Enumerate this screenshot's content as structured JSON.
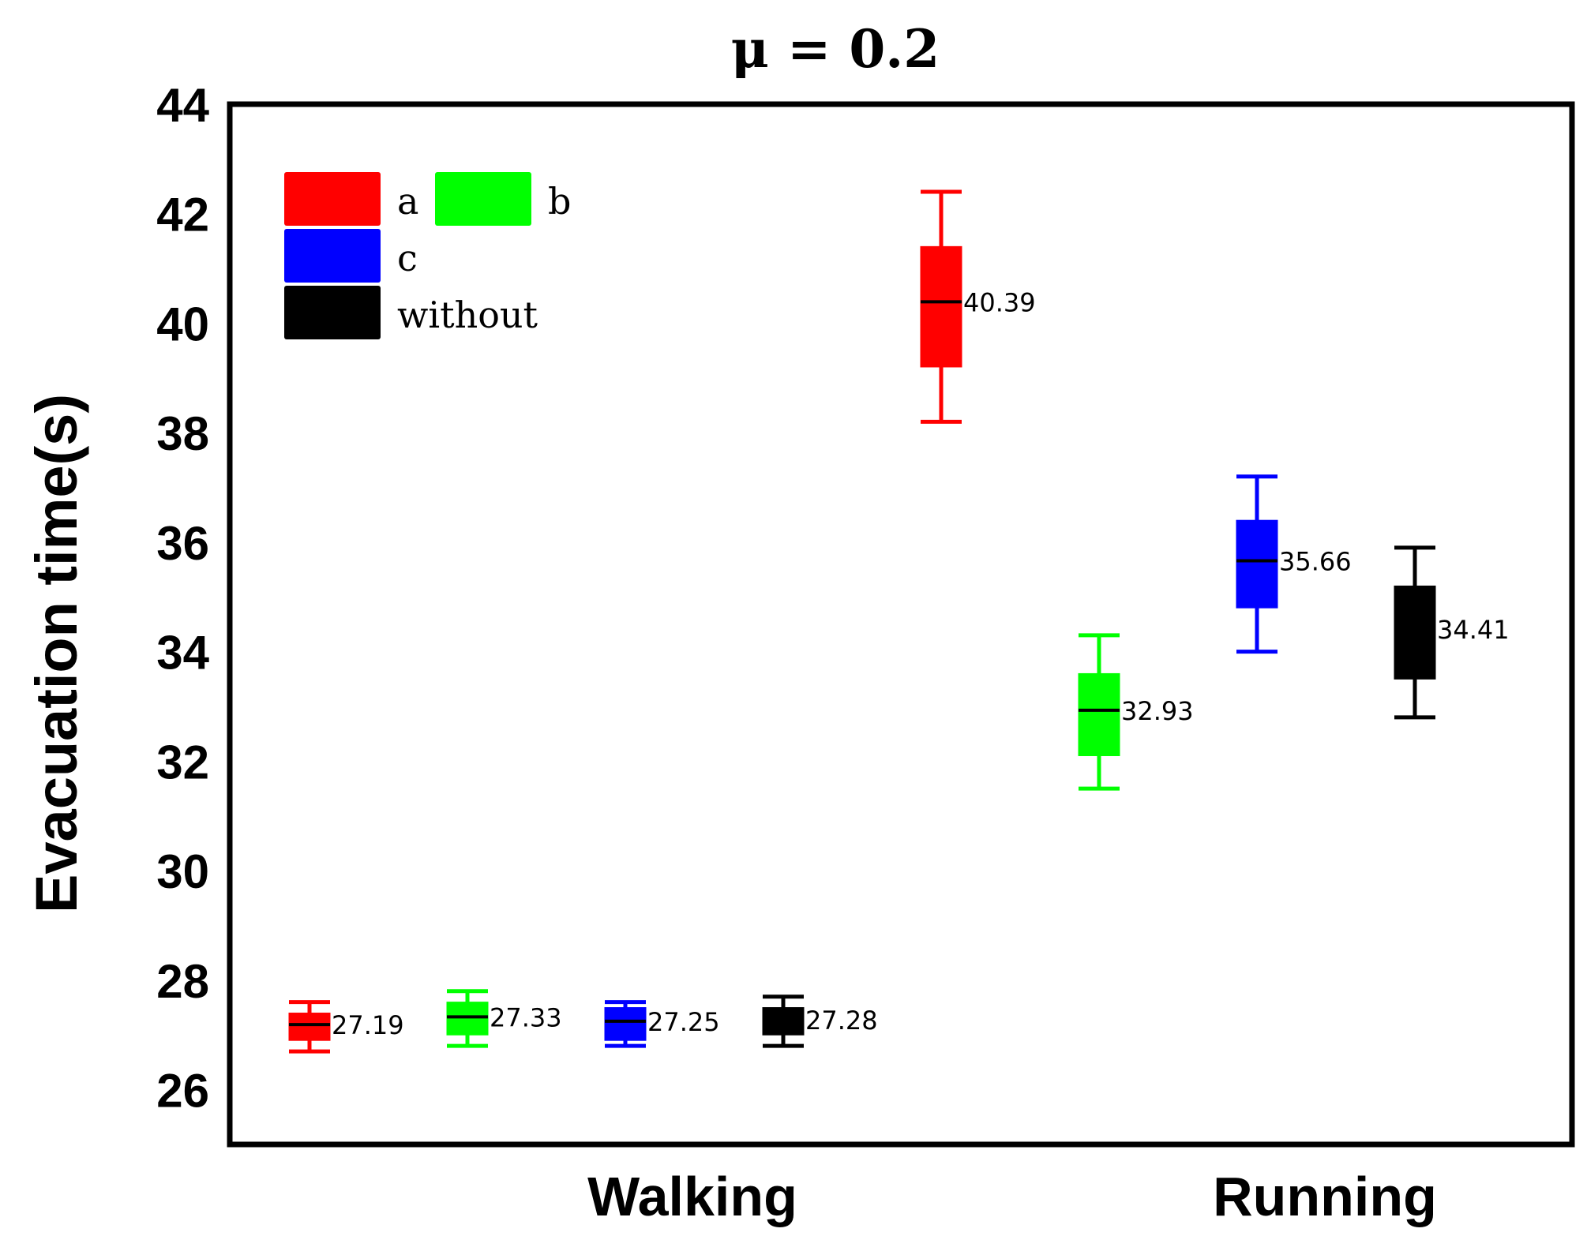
{
  "chart_data": {
    "type": "box",
    "title": "μ = 0.2",
    "ylabel": "Evacuation time(s)",
    "xlabel": "",
    "ylim": [
      25,
      44
    ],
    "yticks": [
      "26",
      "28",
      "30",
      "32",
      "34",
      "36",
      "38",
      "40",
      "42",
      "44"
    ],
    "categories": [
      "Walking",
      "Running"
    ],
    "legend": {
      "position": "top-left",
      "entries": [
        {
          "label": "a",
          "color": "#ff0000"
        },
        {
          "label": "b",
          "color": "#00ff00"
        },
        {
          "label": "c",
          "color": "#0000ff"
        },
        {
          "label": "without",
          "color": "#000000"
        }
      ]
    },
    "series": [
      {
        "name": "a",
        "color": "#ff0000",
        "boxes": [
          {
            "category": "Walking",
            "min": 26.7,
            "q1": 26.9,
            "median": 27.19,
            "q3": 27.4,
            "max": 27.6,
            "label": "27.19"
          },
          {
            "category": "Running",
            "min": 38.2,
            "q1": 39.2,
            "median": 40.39,
            "q3": 41.4,
            "max": 42.4,
            "label": "40.39"
          }
        ]
      },
      {
        "name": "b",
        "color": "#00ff00",
        "boxes": [
          {
            "category": "Walking",
            "min": 26.8,
            "q1": 27.0,
            "median": 27.33,
            "q3": 27.6,
            "max": 27.8,
            "label": "27.33"
          },
          {
            "category": "Running",
            "min": 31.5,
            "q1": 32.1,
            "median": 32.93,
            "q3": 33.6,
            "max": 34.3,
            "label": "32.93"
          }
        ]
      },
      {
        "name": "c",
        "color": "#0000ff",
        "boxes": [
          {
            "category": "Walking",
            "min": 26.8,
            "q1": 26.9,
            "median": 27.25,
            "q3": 27.5,
            "max": 27.6,
            "label": "27.25"
          },
          {
            "category": "Running",
            "min": 34.0,
            "q1": 34.8,
            "median": 35.66,
            "q3": 36.4,
            "max": 37.2,
            "label": "35.66"
          }
        ]
      },
      {
        "name": "without",
        "color": "#000000",
        "boxes": [
          {
            "category": "Walking",
            "min": 26.8,
            "q1": 27.0,
            "median": 27.28,
            "q3": 27.5,
            "max": 27.7,
            "label": "27.28"
          },
          {
            "category": "Running",
            "min": 32.8,
            "q1": 33.5,
            "median": 34.41,
            "q3": 35.2,
            "max": 35.9,
            "label": "34.41"
          }
        ]
      }
    ]
  }
}
